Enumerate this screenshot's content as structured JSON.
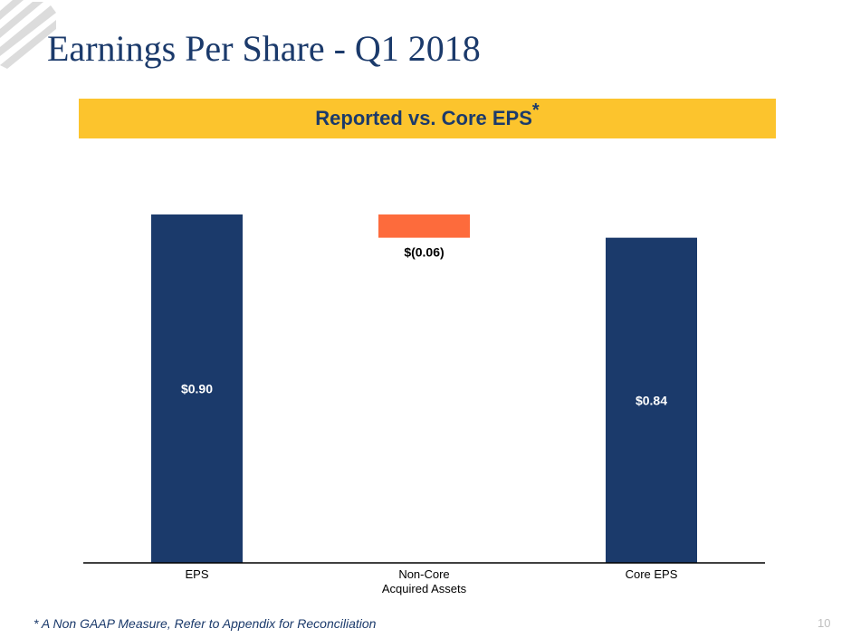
{
  "slide": {
    "title": "Earnings Per Share - Q1 2018",
    "banner_title": "Reported vs. Core EPS",
    "banner_marker": "*",
    "footnote": "* A Non GAAP Measure,  Refer to Appendix for Reconciliation",
    "page_number": "10"
  },
  "colors": {
    "title": "#1b3a6b",
    "banner": "#fcc42d",
    "bar_total": "#1b3a6b",
    "bar_negative": "#fd6b3c"
  },
  "chart_data": {
    "type": "bar",
    "subtype": "waterfall",
    "title": "Reported vs. Core EPS*",
    "categories": [
      "EPS",
      "Non-Core\nAcquired Assets",
      "Core EPS"
    ],
    "values": [
      0.9,
      -0.06,
      0.84
    ],
    "data_labels": [
      "$0.90",
      "$(0.06)",
      "$0.84"
    ],
    "bar_kinds": [
      "total",
      "delta",
      "total"
    ],
    "ylim": [
      0,
      0.9
    ],
    "xlabel": "",
    "ylabel": "",
    "grid": false,
    "legend": "none"
  }
}
